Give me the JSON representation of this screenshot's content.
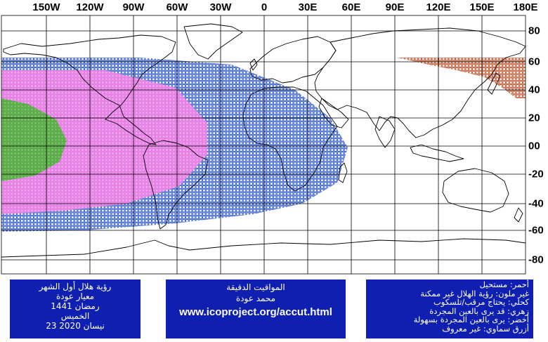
{
  "map": {
    "lon_labels": [
      "150W",
      "120W",
      "90W",
      "60W",
      "30W",
      "0",
      "30E",
      "60E",
      "90E",
      "120E",
      "150E",
      "180E"
    ],
    "lat_labels": [
      "80",
      "60",
      "40",
      "20",
      "00",
      "-20",
      "-40",
      "-60",
      "-80"
    ],
    "colors": {
      "grid": "#000000",
      "coast": "#000000",
      "red_zone": "#c0502a",
      "blue_zone": "#2a55cc",
      "pink_zone": "#ee88ee",
      "green_zone": "#55b040",
      "box_bg": "#0f1fb0"
    }
  },
  "left_box": {
    "line1": "رؤية هلال أول الشهر",
    "line2": "معيار عودة",
    "line3": "رمضان 1441",
    "line4": "الخميس",
    "line5": "23 نيسان 2020"
  },
  "mid_box": {
    "line1": "المواقيت الدقيقة",
    "line2": "محمد عودة",
    "url": "www.icoproject.org/accut.html"
  },
  "legend": {
    "red": "أحمر: مستحيل",
    "none": "غير ملون: رؤية الهلال غير ممكنة",
    "blue_dark": "كحلي: يحتاج مرقب/تلسكوب",
    "pink": "زهري: قد يرى بالعين المجردة",
    "green": "أخضر: يرى بالعين المجردة بسهولة",
    "sky": "أزرق سماوي: غير معروف"
  }
}
